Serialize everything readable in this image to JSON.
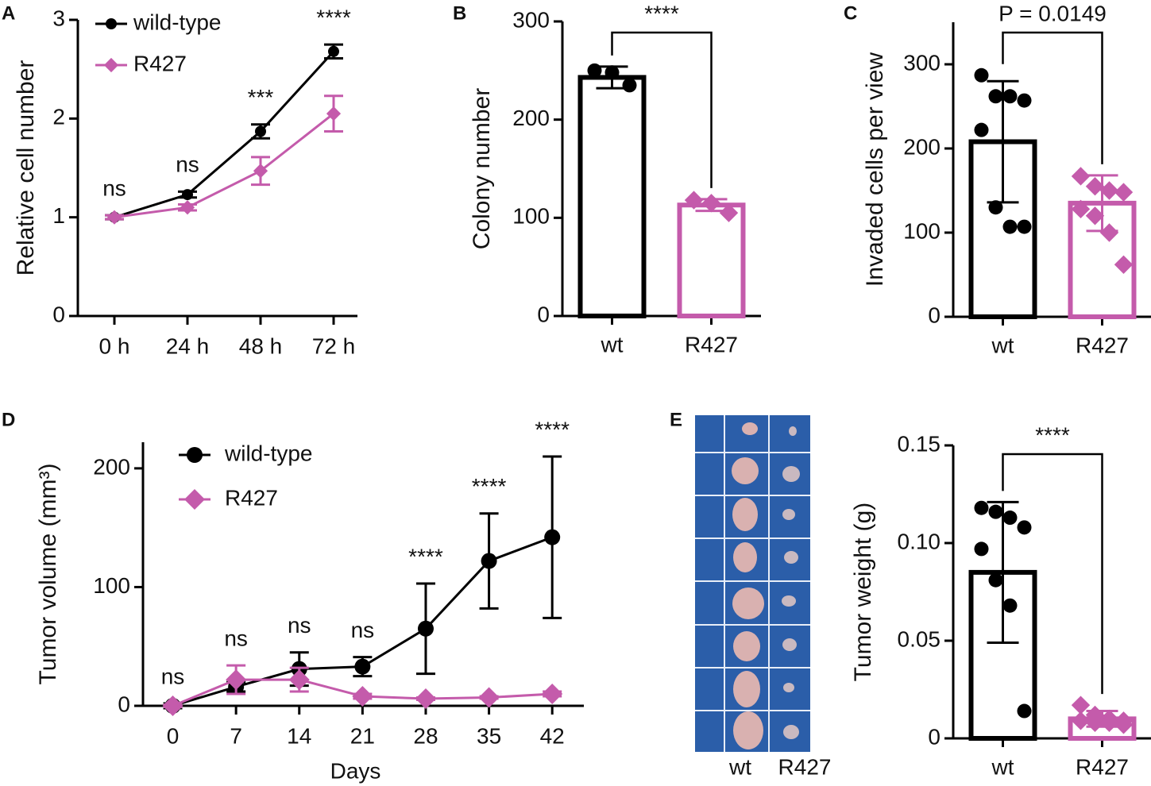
{
  "chart_data": [
    {
      "type": "line",
      "panel_label": "A",
      "ylabel": "Relative cell number",
      "categories": [
        "0 h",
        "24 h",
        "48 h",
        "72 h"
      ],
      "series": [
        {
          "name": "wild-type",
          "color": "#000000",
          "marker": "circle",
          "values": [
            1,
            1.23,
            1.87,
            2.68
          ],
          "errors": [
            0.02,
            0.03,
            0.07,
            0.07
          ]
        },
        {
          "name": "R427",
          "color": "#c45bab",
          "marker": "diamond",
          "values": [
            1,
            1.1,
            1.47,
            2.05
          ],
          "errors": [
            0.02,
            0.03,
            0.14,
            0.18
          ]
        }
      ],
      "annotations": [
        "ns",
        "ns",
        "***",
        "****"
      ],
      "ylim": [
        0,
        3
      ],
      "yticks": [
        0,
        1,
        2,
        3
      ]
    },
    {
      "type": "bar",
      "panel_label": "B",
      "ylabel": "Colony number",
      "categories": [
        "wt",
        "R427"
      ],
      "colors": [
        "#000000",
        "#c45bab"
      ],
      "markers": [
        "circle",
        "diamond"
      ],
      "values": [
        243,
        113
      ],
      "errors": [
        11,
        6
      ],
      "points": [
        [
          250,
          248,
          235
        ],
        [
          118,
          115,
          105
        ]
      ],
      "annotation": "****",
      "ylim": [
        0,
        300
      ],
      "yticks": [
        0,
        100,
        200,
        300
      ]
    },
    {
      "type": "bar",
      "panel_label": "C",
      "ylabel": "Invaded cells per view",
      "categories": [
        "wt",
        "R427"
      ],
      "colors": [
        "#000000",
        "#c45bab"
      ],
      "markers": [
        "circle",
        "diamond"
      ],
      "values": [
        208,
        135
      ],
      "errors": [
        72,
        33
      ],
      "points": [
        [
          287,
          262,
          262,
          257,
          222,
          130,
          107,
          107
        ],
        [
          167,
          155,
          150,
          148,
          128,
          120,
          100,
          62
        ]
      ],
      "annotation": "P = 0.0149",
      "ylim": [
        0,
        350
      ],
      "yticks": [
        0,
        100,
        200,
        300
      ]
    },
    {
      "type": "line",
      "panel_label": "D",
      "ylabel": "Tumor volume (mm³)",
      "xlabel": "Days",
      "x": [
        0,
        7,
        14,
        21,
        28,
        35,
        42
      ],
      "series": [
        {
          "name": "wild-type",
          "color": "#000000",
          "marker": "circle",
          "values": [
            0,
            16,
            31,
            33,
            65,
            122,
            142
          ],
          "errors": [
            2,
            4,
            14,
            8,
            38,
            40,
            68
          ]
        },
        {
          "name": "R427",
          "color": "#c45bab",
          "marker": "diamond",
          "values": [
            0,
            22,
            22,
            8,
            6,
            7,
            10
          ],
          "errors": [
            1,
            12,
            10,
            2,
            1,
            1,
            2
          ]
        }
      ],
      "annotations": [
        "ns",
        "ns",
        "ns",
        "ns",
        "****",
        "****",
        "****"
      ],
      "xlim": [
        -3.3,
        45.5
      ],
      "xticks": [
        0,
        7,
        14,
        21,
        28,
        35,
        42
      ],
      "ylim": [
        0,
        222
      ],
      "yticks": [
        0,
        100,
        200
      ]
    },
    {
      "type": "bar",
      "panel_label": "E",
      "ylabel": "Tumor weight (g)",
      "image_labels": [
        "wt",
        "R427"
      ],
      "categories": [
        "wt",
        "R427"
      ],
      "colors": [
        "#000000",
        "#c45bab"
      ],
      "markers": [
        "circle",
        "diamond"
      ],
      "values": [
        0.085,
        0.01
      ],
      "errors": [
        0.036,
        0.004
      ],
      "points": [
        [
          0.118,
          0.116,
          0.113,
          0.108,
          0.097,
          0.081,
          0.068,
          0.014
        ],
        [
          0.017,
          0.012,
          0.01,
          0.009,
          0.009,
          0.008,
          0.008,
          0.007
        ]
      ],
      "annotation": "****",
      "ylim": [
        0,
        0.15
      ],
      "yticks": [
        0,
        0.05,
        {
          "value": 0.1,
          "label": "0.10"
        },
        0.15
      ]
    }
  ]
}
